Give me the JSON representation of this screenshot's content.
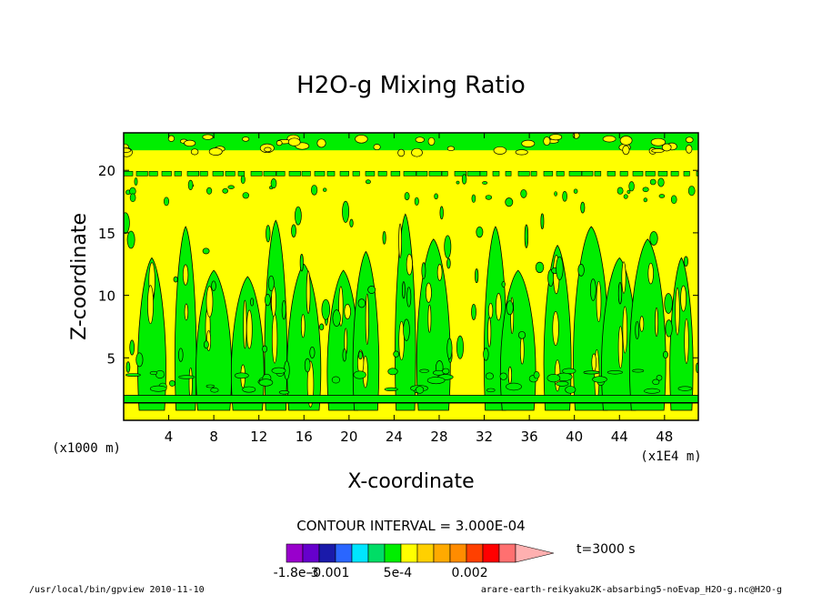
{
  "chart_data": {
    "type": "heatmap",
    "title": "H2O-g Mixing Ratio",
    "xlabel": "X-coordinate",
    "ylabel": "Z-coordinate",
    "x_unit_label": "(x1E4 m)",
    "y_unit_label": "(x1000 m)",
    "x_ticks": [
      4,
      8,
      12,
      16,
      20,
      24,
      28,
      32,
      36,
      40,
      44,
      48
    ],
    "y_ticks": [
      5,
      10,
      15,
      20
    ],
    "xlim": [
      0,
      51
    ],
    "ylim": [
      0,
      23
    ],
    "contour_interval_text": "CONTOUR INTERVAL = 3.000E-04",
    "time_label": "t=3000 s",
    "colorbar_colors": [
      "#9900cc",
      "#6600cc",
      "#1a1aaa",
      "#2a66ff",
      "#00e5ff",
      "#00dd66",
      "#00ee00",
      "#ffff00",
      "#ffd000",
      "#ffaa00",
      "#ff8c00",
      "#ff4000",
      "#ff0000",
      "#ff7070",
      "#ffb0b0"
    ],
    "colorbar_tick_labels": [
      "-1.8e-3",
      "-0.001",
      "5e-4",
      "0.002"
    ],
    "background_level_color": "#ffff00",
    "moist_level_color": "#00ee00",
    "surface_layer_z": 1.4,
    "tropopause_band_z": 19.7,
    "plumes": [
      {
        "x": 2.5,
        "z_top": 13.0
      },
      {
        "x": 5.5,
        "z_top": 15.5
      },
      {
        "x": 8.0,
        "z_top": 12.0
      },
      {
        "x": 11.0,
        "z_top": 11.5
      },
      {
        "x": 13.5,
        "z_top": 16.0
      },
      {
        "x": 16.0,
        "z_top": 12.5
      },
      {
        "x": 19.5,
        "z_top": 12.0
      },
      {
        "x": 21.5,
        "z_top": 13.5
      },
      {
        "x": 25.0,
        "z_top": 16.5
      },
      {
        "x": 27.5,
        "z_top": 14.5
      },
      {
        "x": 33.0,
        "z_top": 15.5
      },
      {
        "x": 35.0,
        "z_top": 12.0
      },
      {
        "x": 38.5,
        "z_top": 14.0
      },
      {
        "x": 41.5,
        "z_top": 15.5
      },
      {
        "x": 44.0,
        "z_top": 13.0
      },
      {
        "x": 46.5,
        "z_top": 14.5
      },
      {
        "x": 49.5,
        "z_top": 13.0
      }
    ]
  },
  "footer": {
    "left": "/usr/local/bin/gpview  2010-11-10",
    "right": "arare-earth-reikyaku2K-absarbing5-noEvap_H2O-g.nc@H2O-g"
  }
}
